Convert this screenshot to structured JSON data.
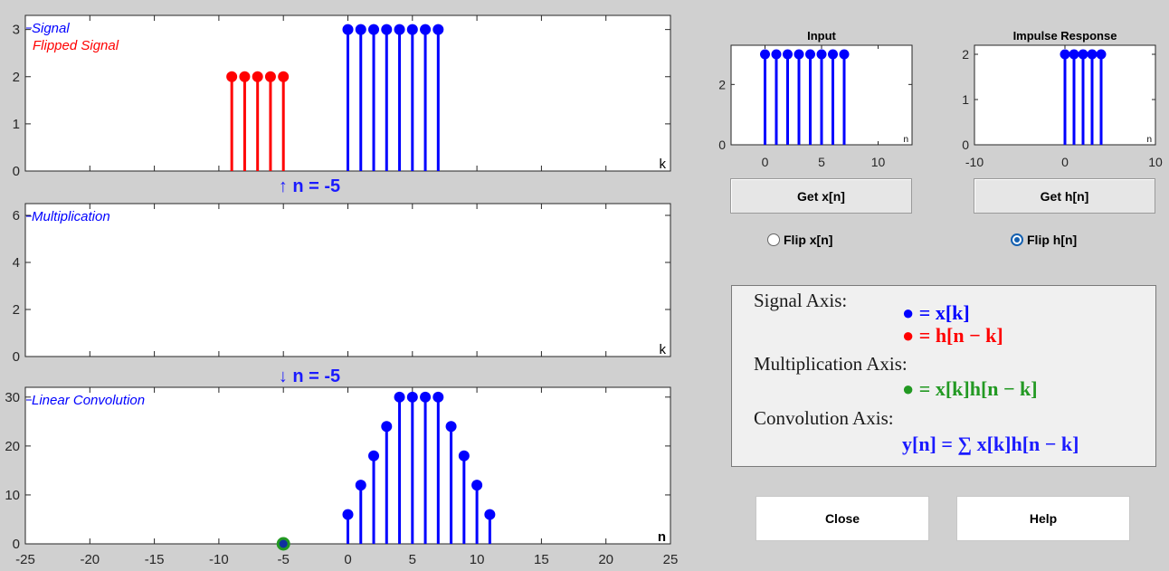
{
  "chart_data": [
    {
      "id": "signal",
      "type": "stem",
      "legend": [
        "Signal",
        "Flipped Signal"
      ],
      "xlabel": "k",
      "xlim": [
        -25,
        25
      ],
      "ylim": [
        0,
        3.3
      ],
      "yticks": [
        0,
        1,
        2,
        3
      ],
      "series": [
        {
          "name": "Signal",
          "color": "#0000ff",
          "x": [
            0,
            1,
            2,
            3,
            4,
            5,
            6,
            7
          ],
          "y": [
            3,
            3,
            3,
            3,
            3,
            3,
            3,
            3
          ]
        },
        {
          "name": "Flipped Signal",
          "color": "#ff0000",
          "x": [
            -9,
            -8,
            -7,
            -6,
            -5
          ],
          "y": [
            2,
            2,
            2,
            2,
            2
          ]
        }
      ]
    },
    {
      "id": "multiplication",
      "type": "stem",
      "legend": [
        "Multiplication"
      ],
      "xlabel": "k",
      "xlim": [
        -25,
        25
      ],
      "ylim": [
        0,
        6.5
      ],
      "yticks": [
        0,
        2,
        4,
        6
      ],
      "series": []
    },
    {
      "id": "convolution",
      "type": "stem",
      "legend": [
        "Linear Convolution"
      ],
      "xlabel": "n",
      "xlim": [
        -25,
        25
      ],
      "ylim": [
        0,
        32
      ],
      "yticks": [
        0,
        10,
        20,
        30
      ],
      "xticks": [
        -25,
        -20,
        -15,
        -10,
        -5,
        0,
        5,
        10,
        15,
        20,
        25
      ],
      "series": [
        {
          "name": "Linear Convolution",
          "color": "#0000ff",
          "x": [
            0,
            1,
            2,
            3,
            4,
            5,
            6,
            7,
            8,
            9,
            10,
            11
          ],
          "y": [
            6,
            12,
            18,
            24,
            30,
            30,
            30,
            30,
            24,
            18,
            12,
            6
          ]
        }
      ],
      "current_marker": {
        "x": -5,
        "y": 0
      }
    },
    {
      "id": "input",
      "type": "stem",
      "title": "Input",
      "xlabel": "n",
      "xlim": [
        -3,
        13
      ],
      "ylim": [
        0,
        3.3
      ],
      "yticks": [
        0,
        2
      ],
      "xticks": [
        0,
        5,
        10
      ],
      "series": [
        {
          "color": "#0000ff",
          "x": [
            0,
            1,
            2,
            3,
            4,
            5,
            6,
            7
          ],
          "y": [
            3,
            3,
            3,
            3,
            3,
            3,
            3,
            3
          ]
        }
      ]
    },
    {
      "id": "impulse",
      "type": "stem",
      "title": "Impulse Response",
      "xlabel": "n",
      "xlim": [
        -10,
        10
      ],
      "ylim": [
        0,
        2.2
      ],
      "yticks": [
        0,
        1,
        2
      ],
      "xticks": [
        -10,
        0,
        10
      ],
      "series": [
        {
          "color": "#0000ff",
          "x": [
            0,
            1,
            2,
            3,
            4
          ],
          "y": [
            2,
            2,
            2,
            2,
            2
          ]
        }
      ]
    }
  ],
  "n_label_up": "↑ n = -5",
  "n_label_down": "↓ n = -5",
  "buttons": {
    "get_x": "Get x[n]",
    "get_h": "Get h[n]",
    "close": "Close",
    "help": "Help"
  },
  "radios": {
    "flip_x": "Flip x[n]",
    "flip_h": "Flip h[n]",
    "selected": "flip_h"
  },
  "legend": {
    "signal_axis": "Signal Axis:",
    "signal_x": "● = x[k]",
    "signal_h": "● = h[n − k]",
    "mult_axis": "Multiplication Axis:",
    "mult_eq": "● = x[k]h[n − k]",
    "conv_axis": "Convolution Axis:",
    "conv_eq": "y[n] = ∑ x[k]h[n − k]"
  },
  "colors": {
    "blue": "#0000ff",
    "red": "#ff0000",
    "green": "#229922",
    "label_blue": "#1a1aff"
  }
}
